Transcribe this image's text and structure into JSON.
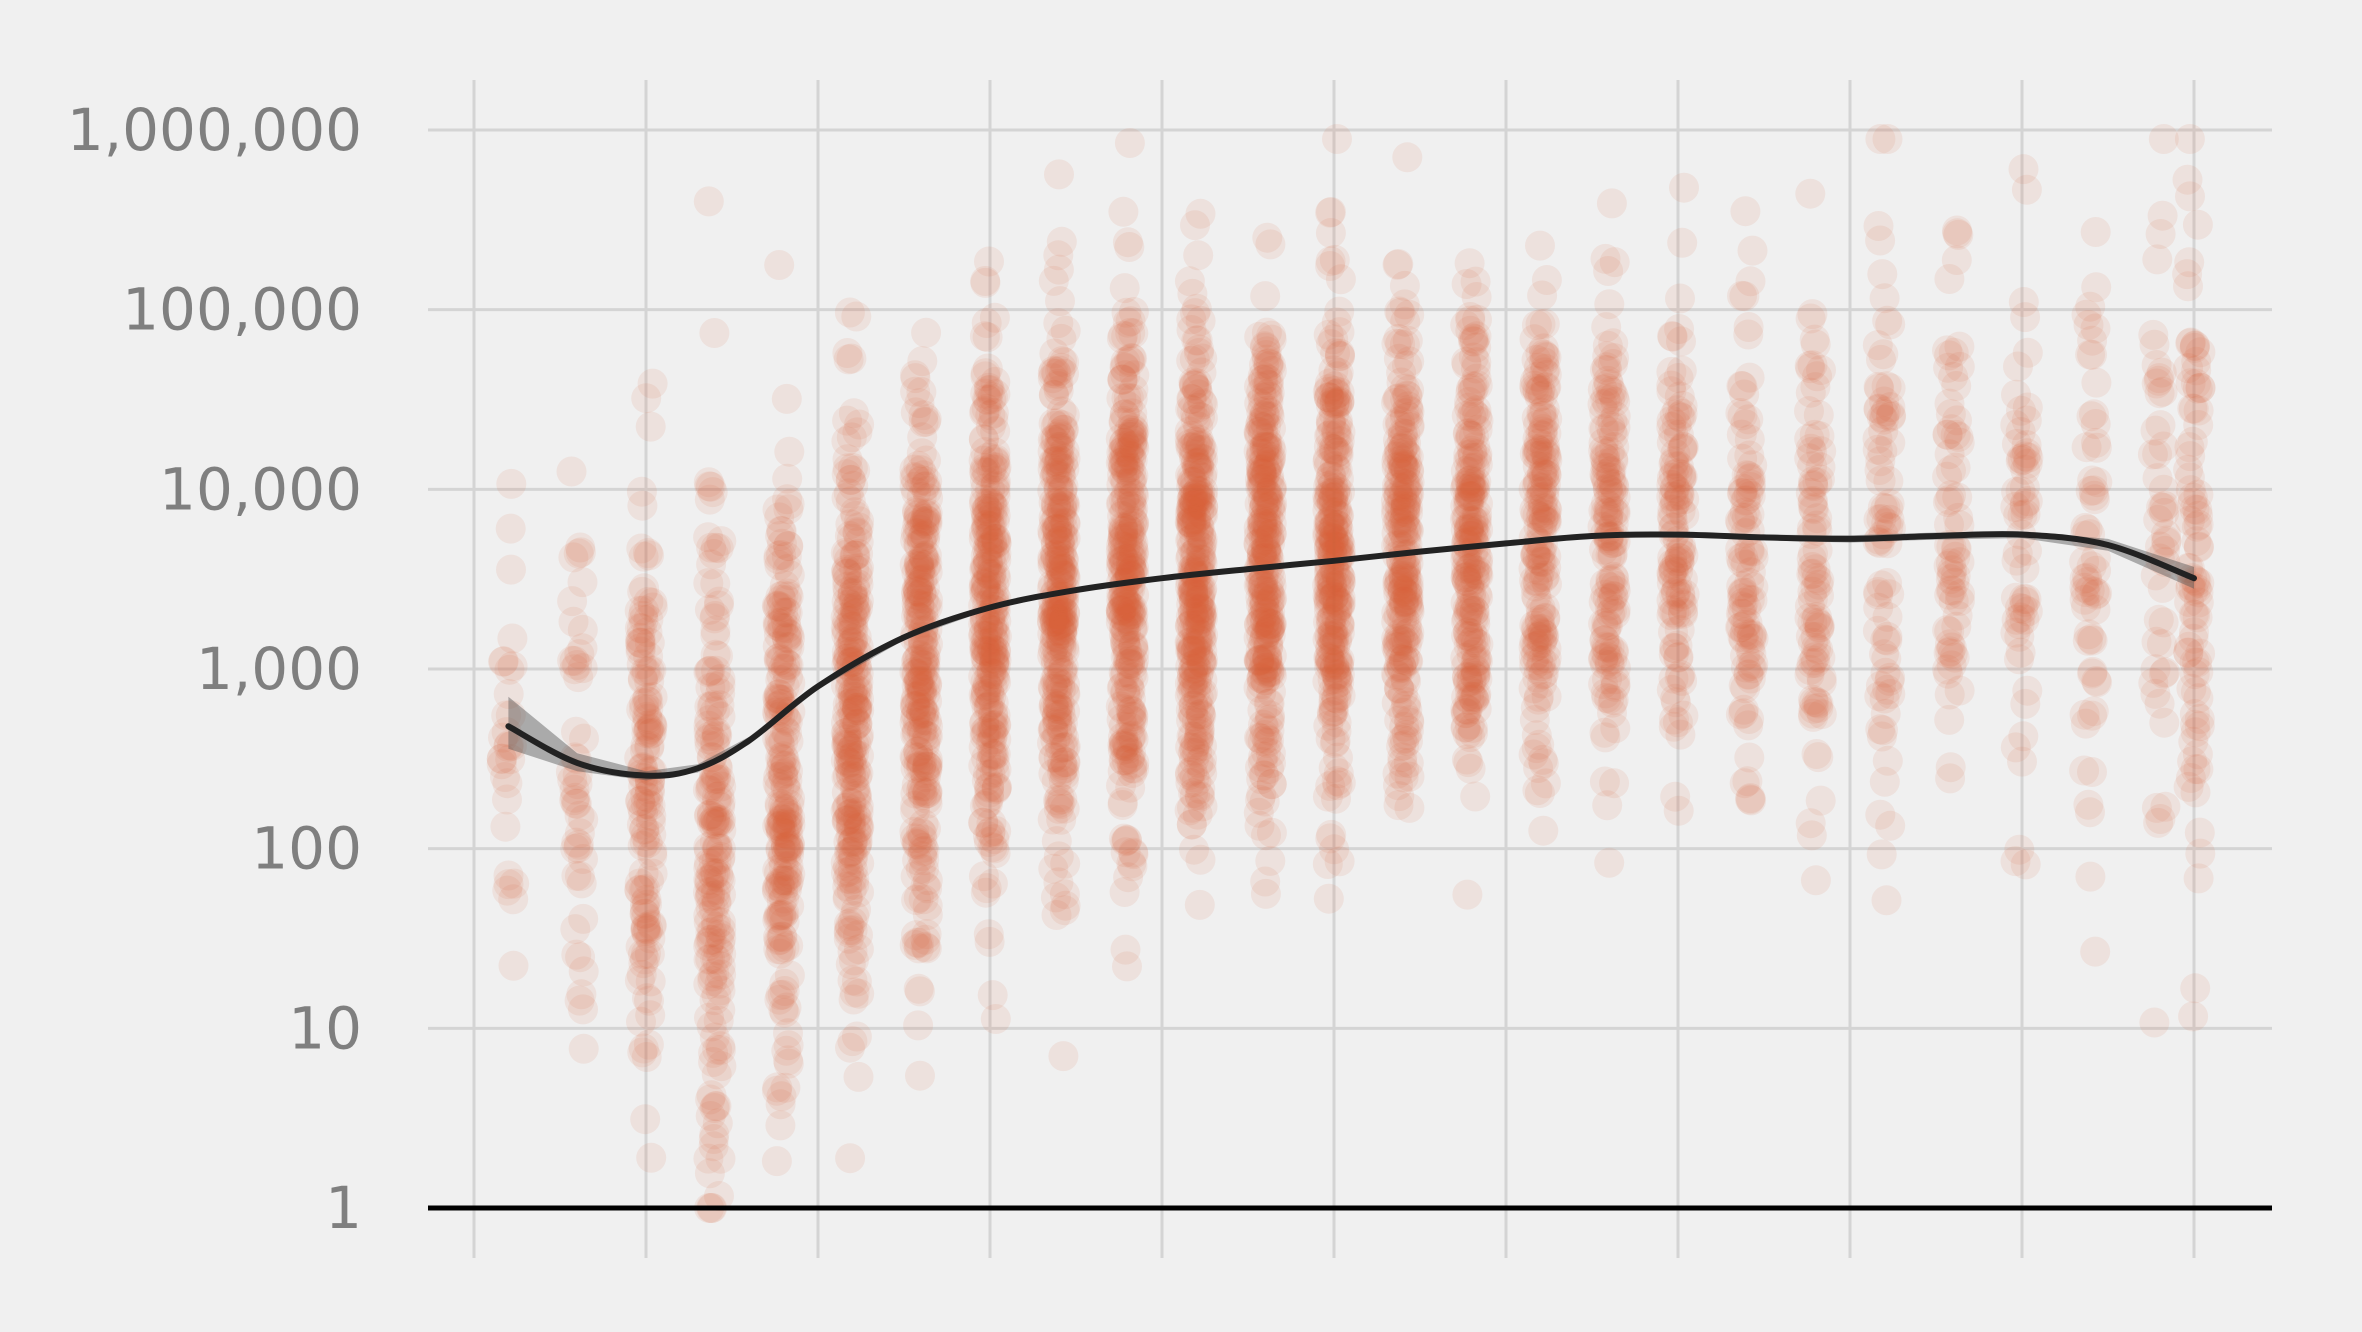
{
  "chart_data": {
    "type": "scatter",
    "title": "",
    "xlabel": "",
    "ylabel": "",
    "y_scale": "log",
    "ylim": [
      1,
      1000000
    ],
    "xlim": [
      -0.25,
      10.45
    ],
    "grid": true,
    "legend": "none",
    "y_ticks": [
      {
        "value": 1,
        "label": "1"
      },
      {
        "value": 10,
        "label": "10"
      },
      {
        "value": 100,
        "label": "100"
      },
      {
        "value": 1000,
        "label": "1,000"
      },
      {
        "value": 10000,
        "label": "10,000"
      },
      {
        "value": 100000,
        "label": "100,000"
      },
      {
        "value": 1000000,
        "label": "1,000,000"
      }
    ],
    "x_gridlines": [
      0,
      1,
      2,
      3,
      4,
      5,
      6,
      7,
      8,
      9,
      10
    ],
    "point_color": "#d9603b",
    "point_opacity": 0.1,
    "trend_color": "#222222",
    "band_color": "#555555",
    "trend_line": {
      "x": [
        0.2,
        0.6,
        1.0,
        1.3,
        1.6,
        2.0,
        2.5,
        3.0,
        3.5,
        4.0,
        4.5,
        5.0,
        5.5,
        6.0,
        6.5,
        7.0,
        7.5,
        8.0,
        8.5,
        9.0,
        9.5,
        10.0
      ],
      "y": [
        480,
        300,
        255,
        280,
        400,
        800,
        1500,
        2200,
        2750,
        3200,
        3600,
        4000,
        4500,
        5000,
        5500,
        5600,
        5400,
        5300,
        5500,
        5600,
        4900,
        3200
      ],
      "lower": [
        360,
        270,
        240,
        265,
        380,
        770,
        1450,
        2150,
        2700,
        3150,
        3550,
        3950,
        4450,
        4950,
        5400,
        5450,
        5200,
        5050,
        5250,
        5350,
        4550,
        2800
      ],
      "upper": [
        700,
        340,
        270,
        295,
        420,
        830,
        1550,
        2250,
        2800,
        3250,
        3650,
        4050,
        4550,
        5050,
        5600,
        5750,
        5600,
        5550,
        5750,
        5850,
        5300,
        3700
      ]
    },
    "columns": [
      {
        "x": 0.2,
        "count": 30,
        "median": 600,
        "spread": 0.9
      },
      {
        "x": 0.6,
        "count": 50,
        "median": 300,
        "spread": 0.8
      },
      {
        "x": 1.0,
        "count": 140,
        "median": 220,
        "spread": 0.85
      },
      {
        "x": 1.4,
        "count": 180,
        "median": 150,
        "spread": 0.9
      },
      {
        "x": 1.8,
        "count": 220,
        "median": 200,
        "spread": 0.9
      },
      {
        "x": 2.2,
        "count": 260,
        "median": 500,
        "spread": 0.85
      },
      {
        "x": 2.6,
        "count": 260,
        "median": 1000,
        "spread": 0.8
      },
      {
        "x": 3.0,
        "count": 280,
        "median": 2000,
        "spread": 0.75
      },
      {
        "x": 3.4,
        "count": 300,
        "median": 3000,
        "spread": 0.7
      },
      {
        "x": 3.8,
        "count": 300,
        "median": 3500,
        "spread": 0.7
      },
      {
        "x": 4.2,
        "count": 320,
        "median": 3500,
        "spread": 0.7
      },
      {
        "x": 4.6,
        "count": 300,
        "median": 4000,
        "spread": 0.7
      },
      {
        "x": 5.0,
        "count": 280,
        "median": 4500,
        "spread": 0.65
      },
      {
        "x": 5.4,
        "count": 240,
        "median": 5000,
        "spread": 0.65
      },
      {
        "x": 5.8,
        "count": 220,
        "median": 5500,
        "spread": 0.65
      },
      {
        "x": 6.2,
        "count": 180,
        "median": 6000,
        "spread": 0.65
      },
      {
        "x": 6.6,
        "count": 150,
        "median": 6000,
        "spread": 0.65
      },
      {
        "x": 7.0,
        "count": 120,
        "median": 6000,
        "spread": 0.7
      },
      {
        "x": 7.4,
        "count": 100,
        "median": 5500,
        "spread": 0.7
      },
      {
        "x": 7.8,
        "count": 90,
        "median": 5500,
        "spread": 0.7
      },
      {
        "x": 8.2,
        "count": 80,
        "median": 5000,
        "spread": 0.75
      },
      {
        "x": 8.6,
        "count": 70,
        "median": 5500,
        "spread": 0.75
      },
      {
        "x": 9.0,
        "count": 60,
        "median": 5500,
        "spread": 0.75
      },
      {
        "x": 9.4,
        "count": 60,
        "median": 5000,
        "spread": 0.8
      },
      {
        "x": 9.8,
        "count": 50,
        "median": 4000,
        "spread": 0.85
      },
      {
        "x": 10.0,
        "count": 90,
        "median": 3000,
        "spread": 0.9
      }
    ]
  }
}
